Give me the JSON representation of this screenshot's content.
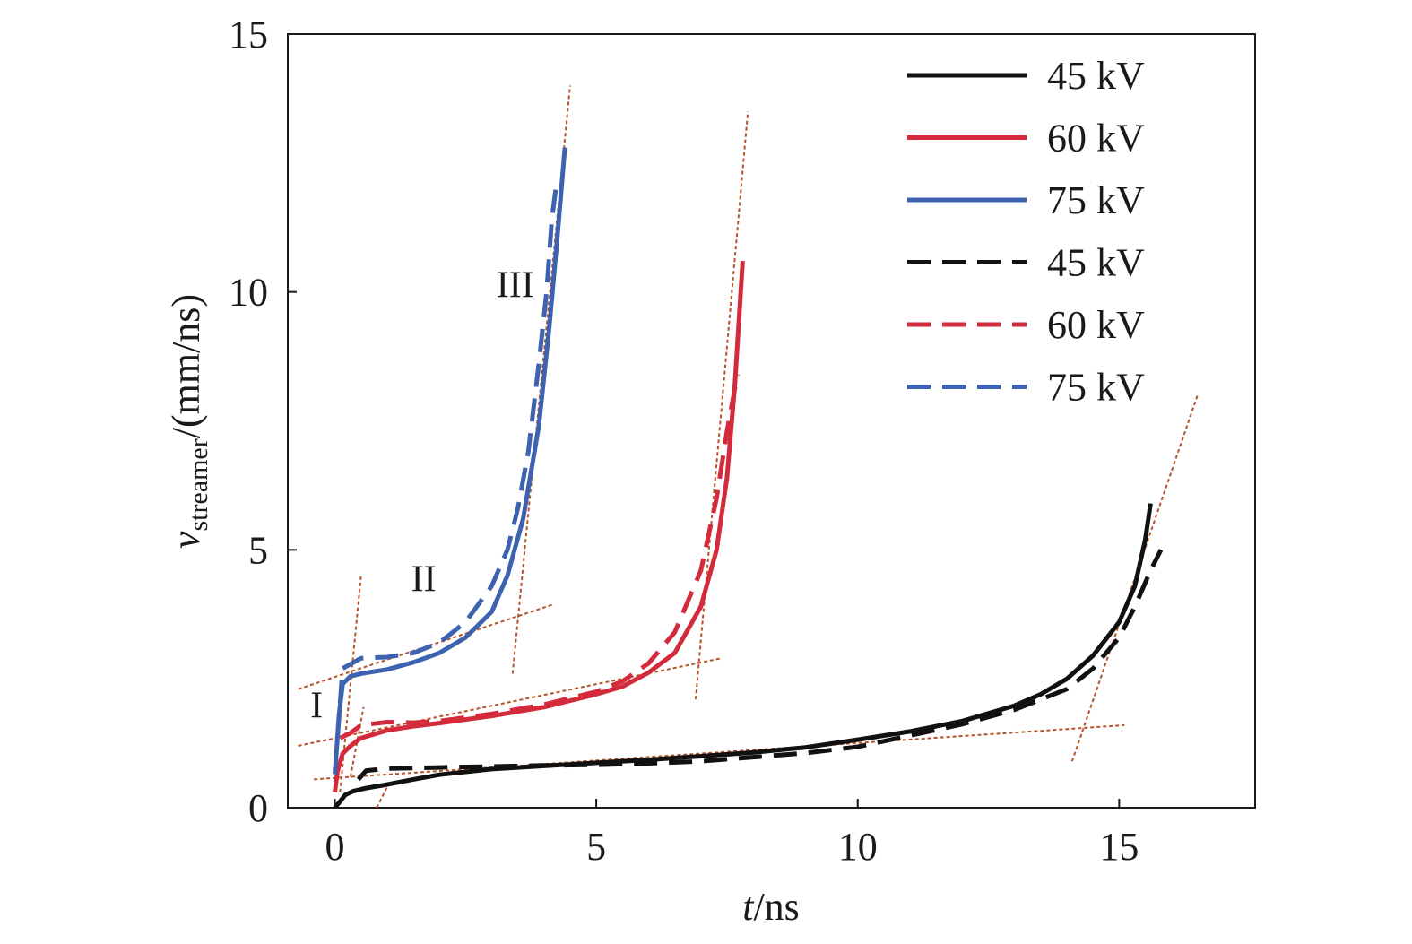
{
  "chart_data": {
    "type": "line",
    "xlabel_italic": "t",
    "xlabel_rest": "/ns",
    "ylabel_italic": "v",
    "ylabel_sub": "streamer",
    "ylabel_rest": "/(mm/ns)",
    "xlim": [
      -0.9,
      17.6
    ],
    "ylim": [
      0,
      15
    ],
    "xticks": [
      0,
      5,
      10,
      15
    ],
    "yticks": [
      0,
      5,
      10,
      15
    ],
    "grid": false,
    "legend_position": "top-right",
    "series": [
      {
        "name": "45 kV",
        "color": "#111111",
        "style": "solid",
        "points": [
          [
            0,
            0
          ],
          [
            0.1,
            0.12
          ],
          [
            0.2,
            0.25
          ],
          [
            0.35,
            0.32
          ],
          [
            0.6,
            0.38
          ],
          [
            1,
            0.45
          ],
          [
            1.5,
            0.55
          ],
          [
            2,
            0.64
          ],
          [
            3,
            0.75
          ],
          [
            4,
            0.81
          ],
          [
            5,
            0.87
          ],
          [
            6,
            0.93
          ],
          [
            7,
            1.0
          ],
          [
            8,
            1.07
          ],
          [
            9,
            1.17
          ],
          [
            10,
            1.32
          ],
          [
            11,
            1.48
          ],
          [
            12,
            1.68
          ],
          [
            13,
            1.98
          ],
          [
            13.5,
            2.2
          ],
          [
            14,
            2.5
          ],
          [
            14.5,
            2.95
          ],
          [
            15,
            3.6
          ],
          [
            15.3,
            4.3
          ],
          [
            15.5,
            5.2
          ],
          [
            15.6,
            5.9
          ]
        ]
      },
      {
        "name": "60 kV",
        "color": "#d42b3c",
        "style": "solid",
        "points": [
          [
            0,
            0.3
          ],
          [
            0.05,
            0.7
          ],
          [
            0.15,
            1.05
          ],
          [
            0.3,
            1.2
          ],
          [
            0.5,
            1.35
          ],
          [
            1,
            1.5
          ],
          [
            1.5,
            1.58
          ],
          [
            2,
            1.64
          ],
          [
            3,
            1.78
          ],
          [
            4,
            1.95
          ],
          [
            5,
            2.2
          ],
          [
            5.5,
            2.35
          ],
          [
            6,
            2.62
          ],
          [
            6.5,
            3.0
          ],
          [
            7,
            3.9
          ],
          [
            7.3,
            5.0
          ],
          [
            7.5,
            6.4
          ],
          [
            7.65,
            8.2
          ],
          [
            7.8,
            10.6
          ]
        ]
      },
      {
        "name": "75 kV",
        "color": "#3d62b0",
        "style": "solid",
        "points": [
          [
            0,
            0.65
          ],
          [
            0.04,
            1.2
          ],
          [
            0.08,
            1.8
          ],
          [
            0.15,
            2.4
          ],
          [
            0.3,
            2.55
          ],
          [
            0.5,
            2.6
          ],
          [
            1,
            2.68
          ],
          [
            1.5,
            2.82
          ],
          [
            2,
            3.0
          ],
          [
            2.5,
            3.3
          ],
          [
            3,
            3.8
          ],
          [
            3.3,
            4.5
          ],
          [
            3.6,
            5.6
          ],
          [
            3.9,
            7.4
          ],
          [
            4.1,
            9.3
          ],
          [
            4.25,
            11.0
          ],
          [
            4.4,
            12.8
          ]
        ]
      },
      {
        "name": "45 kV",
        "color": "#111111",
        "style": "dashed",
        "points": [
          [
            0.45,
            0.55
          ],
          [
            0.6,
            0.72
          ],
          [
            1,
            0.76
          ],
          [
            2,
            0.78
          ],
          [
            3,
            0.8
          ],
          [
            4,
            0.82
          ],
          [
            5,
            0.83
          ],
          [
            6,
            0.86
          ],
          [
            7,
            0.9
          ],
          [
            8,
            0.98
          ],
          [
            9,
            1.06
          ],
          [
            10,
            1.18
          ],
          [
            11,
            1.4
          ],
          [
            12,
            1.62
          ],
          [
            13,
            1.9
          ],
          [
            14,
            2.3
          ],
          [
            14.5,
            2.7
          ],
          [
            15,
            3.3
          ],
          [
            15.3,
            3.9
          ],
          [
            15.6,
            4.6
          ],
          [
            15.8,
            5.0
          ]
        ]
      },
      {
        "name": "60 kV",
        "color": "#d42b3c",
        "style": "dashed",
        "points": [
          [
            0.1,
            1.35
          ],
          [
            0.3,
            1.45
          ],
          [
            0.5,
            1.6
          ],
          [
            1,
            1.66
          ],
          [
            1.5,
            1.65
          ],
          [
            2,
            1.68
          ],
          [
            3,
            1.82
          ],
          [
            4,
            2.0
          ],
          [
            5,
            2.25
          ],
          [
            5.5,
            2.45
          ],
          [
            6,
            2.8
          ],
          [
            6.5,
            3.4
          ],
          [
            7,
            4.6
          ],
          [
            7.3,
            6.0
          ],
          [
            7.5,
            7.3
          ],
          [
            7.7,
            8.4
          ]
        ]
      },
      {
        "name": "75 kV",
        "color": "#3d62b0",
        "style": "dashed",
        "points": [
          [
            0.05,
            1.35
          ],
          [
            0.15,
            2.7
          ],
          [
            0.5,
            2.9
          ],
          [
            1,
            2.92
          ],
          [
            1.5,
            3.0
          ],
          [
            2,
            3.2
          ],
          [
            2.5,
            3.6
          ],
          [
            3,
            4.3
          ],
          [
            3.3,
            5.0
          ],
          [
            3.5,
            5.8
          ],
          [
            3.7,
            6.9
          ],
          [
            3.9,
            8.6
          ],
          [
            4.05,
            10.0
          ],
          [
            4.15,
            11.4
          ],
          [
            4.25,
            12.2
          ]
        ]
      }
    ],
    "fit_lines": {
      "color": "#b5542a",
      "segments": [
        [
          [
            -0.7,
            2.3
          ],
          [
            4.2,
            3.95
          ]
        ],
        [
          [
            0.1,
            0.3
          ],
          [
            0.5,
            4.5
          ]
        ],
        [
          [
            3.4,
            2.6
          ],
          [
            4.5,
            14.0
          ]
        ],
        [
          [
            -0.7,
            1.2
          ],
          [
            7.4,
            2.9
          ]
        ],
        [
          [
            0.3,
            0.6
          ],
          [
            0.55,
            1.95
          ]
        ],
        [
          [
            6.9,
            2.1
          ],
          [
            7.9,
            13.5
          ]
        ],
        [
          [
            -0.4,
            0.55
          ],
          [
            15.1,
            1.6
          ]
        ],
        [
          [
            0.8,
            0.0
          ],
          [
            1.0,
            0.4
          ]
        ],
        [
          [
            14.1,
            0.9
          ],
          [
            16.5,
            8.0
          ]
        ]
      ]
    },
    "annotations": [
      {
        "text": "I",
        "x": -0.35,
        "y": 1.75
      },
      {
        "text": "II",
        "x": 1.7,
        "y": 4.2
      },
      {
        "text": "III",
        "x": 3.45,
        "y": 9.9
      }
    ]
  }
}
